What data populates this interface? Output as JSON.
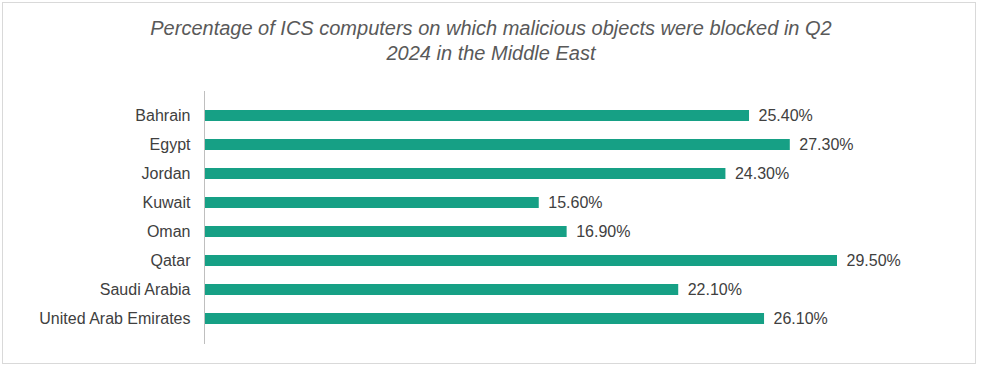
{
  "chart_data": {
    "type": "bar",
    "title": "Percentage of ICS computers on which malicious objects were blocked in Q2 2024 in the Middle East",
    "orientation": "horizontal",
    "categories": [
      "Bahrain",
      "Egypt",
      "Jordan",
      "Kuwait",
      "Oman",
      "Qatar",
      "Saudi Arabia",
      "United Arab Emirates"
    ],
    "values": [
      25.4,
      27.3,
      24.3,
      15.6,
      16.9,
      29.5,
      22.1,
      26.1
    ],
    "value_labels": [
      "25.40%",
      "27.30%",
      "24.30%",
      "15.60%",
      "16.90%",
      "29.50%",
      "22.10%",
      "26.10%"
    ],
    "color": "#16a085",
    "data_labels": true,
    "tick_labels": "y",
    "grid": false
  }
}
